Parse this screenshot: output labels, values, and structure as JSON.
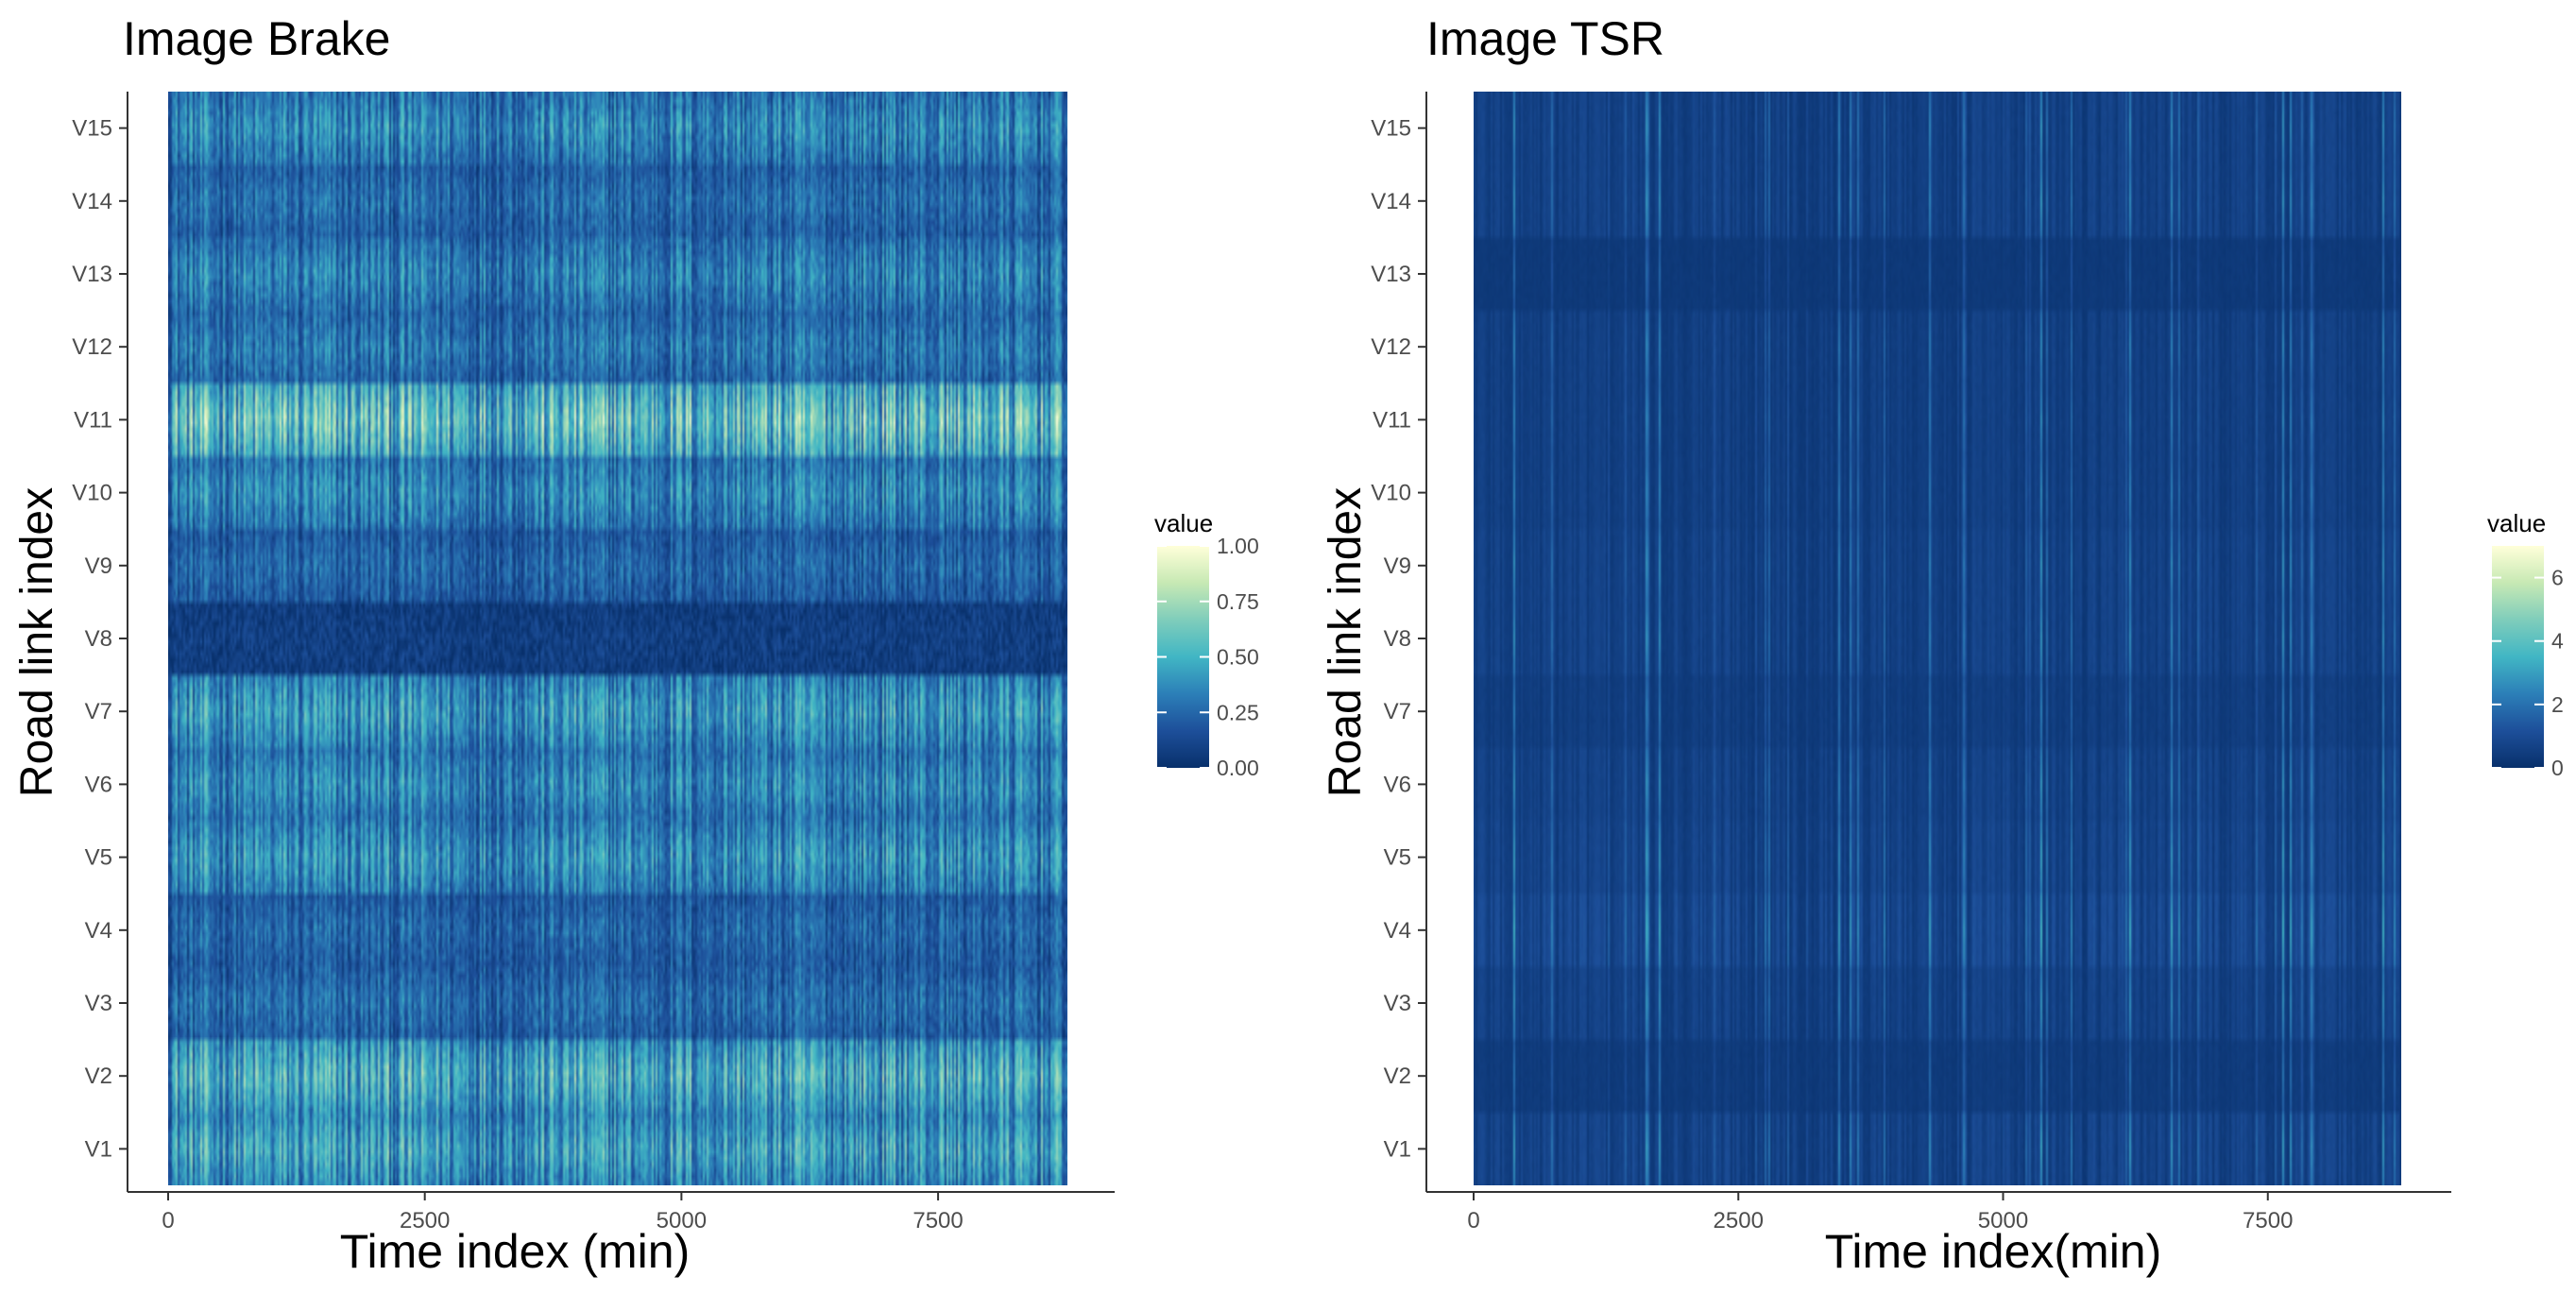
{
  "chart_data": [
    {
      "type": "heatmap",
      "title": "Image Brake",
      "xlabel": "Time index (min)",
      "ylabel": "Road link index",
      "xlim": [
        0,
        8760
      ],
      "x_ticks": [
        0,
        2500,
        5000,
        7500
      ],
      "x_tick_labels": [
        "0",
        "2500",
        "5000",
        "7500"
      ],
      "y_categories": [
        "V1",
        "V2",
        "V3",
        "V4",
        "V5",
        "V6",
        "V7",
        "V8",
        "V9",
        "V10",
        "V11",
        "V12",
        "V13",
        "V14",
        "V15"
      ],
      "row_mean_intensity": [
        0.38,
        0.42,
        0.22,
        0.2,
        0.33,
        0.3,
        0.35,
        0.05,
        0.2,
        0.3,
        0.5,
        0.25,
        0.28,
        0.22,
        0.3
      ],
      "legend": {
        "title": "value",
        "min": 0,
        "max": 1,
        "ticks": [
          0,
          0.25,
          0.5,
          0.75,
          1
        ],
        "tick_labels": [
          "0.00",
          "0.25",
          "0.50",
          "0.75",
          "1.00"
        ]
      },
      "grid": false
    },
    {
      "type": "heatmap",
      "title": "Image TSR",
      "xlabel": "Time index(min)",
      "ylabel": "Road link index",
      "xlim": [
        0,
        8760
      ],
      "x_ticks": [
        0,
        2500,
        5000,
        7500
      ],
      "x_tick_labels": [
        "0",
        "2500",
        "5000",
        "7500"
      ],
      "y_categories": [
        "V1",
        "V2",
        "V3",
        "V4",
        "V5",
        "V6",
        "V7",
        "V8",
        "V9",
        "V10",
        "V11",
        "V12",
        "V13",
        "V14",
        "V15"
      ],
      "row_mean_intensity": [
        0.06,
        0.02,
        0.05,
        0.08,
        0.06,
        0.05,
        0.03,
        0.05,
        0.05,
        0.04,
        0.04,
        0.04,
        0.01,
        0.05,
        0.05
      ],
      "legend": {
        "title": "value",
        "min": 0,
        "max": 7,
        "ticks": [
          0,
          2,
          4,
          6
        ],
        "tick_labels": [
          "0",
          "2",
          "4",
          "6"
        ]
      },
      "grid": false
    }
  ],
  "colors": {
    "scale": [
      "#08306b",
      "#1d4f9a",
      "#2c7fb8",
      "#41b6c4",
      "#7fcdbb",
      "#c7e9b4",
      "#ffffd9"
    ],
    "axis": "#333333",
    "tick_label": "#4d4d4d",
    "text": "#000000"
  }
}
